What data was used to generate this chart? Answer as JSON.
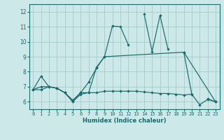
{
  "xlabel": "Humidex (Indice chaleur)",
  "xlim": [
    -0.5,
    23.5
  ],
  "ylim": [
    5.5,
    12.5
  ],
  "yticks": [
    6,
    7,
    8,
    9,
    10,
    11,
    12
  ],
  "xticks": [
    0,
    1,
    2,
    3,
    4,
    5,
    6,
    7,
    8,
    9,
    10,
    11,
    12,
    13,
    14,
    15,
    16,
    17,
    18,
    19,
    20,
    21,
    22,
    23
  ],
  "bg_color": "#cce8e8",
  "grid_color": "#aacece",
  "line_color": "#1a6b6b",
  "series": [
    {
      "x": [
        0,
        1,
        2,
        3,
        4,
        5,
        6,
        7,
        8,
        9,
        10,
        11,
        12,
        13,
        14,
        15,
        16,
        17,
        18,
        19,
        20,
        21,
        22,
        23
      ],
      "y": [
        6.8,
        7.7,
        7.0,
        6.9,
        6.6,
        6.1,
        6.6,
        7.3,
        8.25,
        9.0,
        11.05,
        11.0,
        9.8,
        null,
        11.85,
        9.35,
        11.75,
        9.5,
        null,
        9.3,
        6.5,
        null,
        6.2,
        6.0
      ]
    },
    {
      "x": [
        0,
        1,
        2,
        3,
        4,
        5,
        6,
        7,
        8,
        9,
        19,
        23
      ],
      "y": [
        6.8,
        7.0,
        7.0,
        6.9,
        6.6,
        6.0,
        6.6,
        6.6,
        8.3,
        9.0,
        9.3,
        6.0
      ]
    },
    {
      "x": [
        0,
        1,
        2,
        3,
        4,
        5,
        6,
        7,
        8,
        9,
        10,
        11,
        12,
        13,
        14,
        15,
        16,
        17,
        18,
        19,
        20,
        21,
        22,
        23
      ],
      "y": [
        6.8,
        6.8,
        7.0,
        6.9,
        6.6,
        6.0,
        6.5,
        6.6,
        6.6,
        6.7,
        6.7,
        6.7,
        6.7,
        6.7,
        6.65,
        6.6,
        6.55,
        6.55,
        6.5,
        6.45,
        6.5,
        5.8,
        6.15,
        6.0
      ]
    }
  ]
}
